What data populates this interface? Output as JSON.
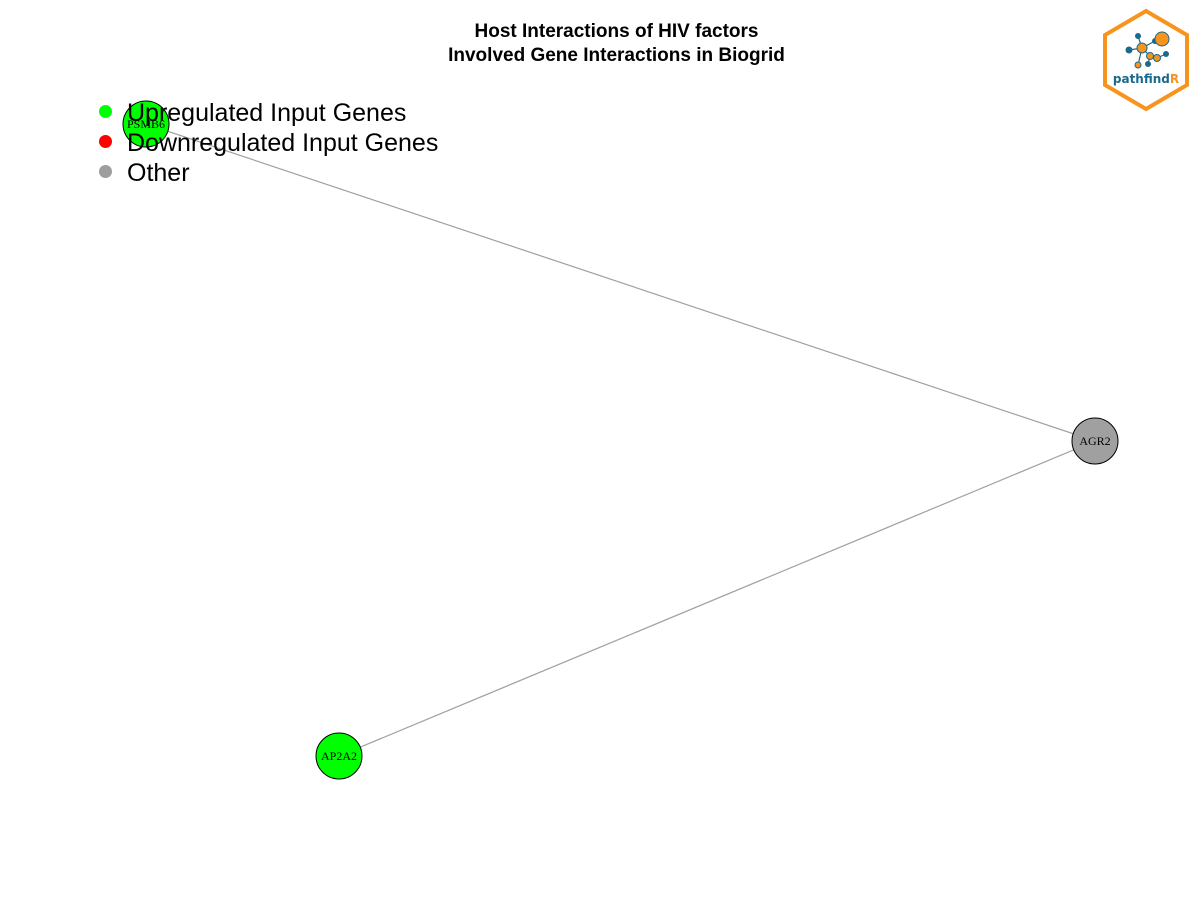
{
  "title": {
    "line1": "Host Interactions of HIV factors",
    "line2": "Involved Gene Interactions in Biogrid"
  },
  "legend": {
    "items": [
      {
        "label": "Upregulated Input Genes",
        "color": "#00FF00"
      },
      {
        "label": "Downregulated Input Genes",
        "color": "#FF0000"
      },
      {
        "label": "Other",
        "color": "#9E9E9E"
      }
    ]
  },
  "graph": {
    "edge_color": "#A0A0A0",
    "node_border_color": "#000000",
    "nodes": [
      {
        "id": "PSMB6",
        "label": "PSMB6",
        "category": "upregulated",
        "color": "#00FF00"
      },
      {
        "id": "AGR2",
        "label": "AGR2",
        "category": "other",
        "color": "#A0A0A0"
      },
      {
        "id": "AP2A2",
        "label": "AP2A2",
        "category": "upregulated",
        "color": "#00FF00"
      }
    ],
    "edges": [
      {
        "source": "PSMB6",
        "target": "AGR2"
      },
      {
        "source": "AP2A2",
        "target": "AGR2"
      }
    ]
  },
  "logo": {
    "text_main": "pathfind",
    "text_accent": "R",
    "frame_color": "#F7941D",
    "text_color": "#1B6A8C"
  }
}
